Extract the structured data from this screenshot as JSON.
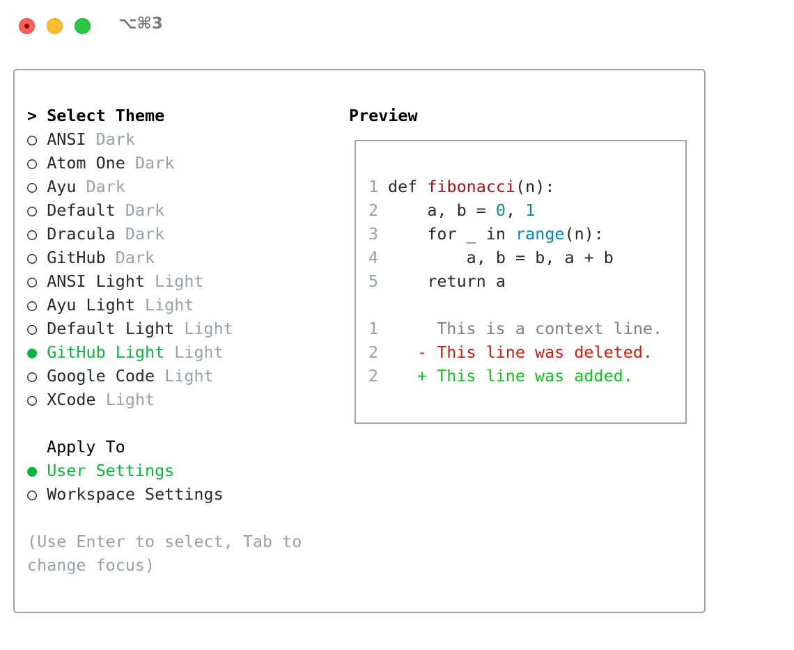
{
  "window": {
    "title": "⌥⌘3",
    "controls": {
      "close_color": "#ff5f57",
      "minimize_color": "#febc2e",
      "maximize_color": "#28c840"
    }
  },
  "theme_list": {
    "heading": "Select Theme",
    "cursor": ">",
    "items": [
      {
        "name": "ANSI",
        "type": "Dark",
        "selected": false
      },
      {
        "name": "Atom One",
        "type": "Dark",
        "selected": false
      },
      {
        "name": "Ayu",
        "type": "Dark",
        "selected": false
      },
      {
        "name": "Default",
        "type": "Dark",
        "selected": false
      },
      {
        "name": "Dracula",
        "type": "Dark",
        "selected": false
      },
      {
        "name": "GitHub",
        "type": "Dark",
        "selected": false
      },
      {
        "name": "ANSI Light",
        "type": "Light",
        "selected": false
      },
      {
        "name": "Ayu Light",
        "type": "Light",
        "selected": false
      },
      {
        "name": "Default Light",
        "type": "Light",
        "selected": false
      },
      {
        "name": "GitHub Light",
        "type": "Light",
        "selected": true
      },
      {
        "name": "Google Code",
        "type": "Light",
        "selected": false
      },
      {
        "name": "XCode",
        "type": "Light",
        "selected": false
      }
    ]
  },
  "apply_to": {
    "heading": "Apply To",
    "items": [
      {
        "label": "User Settings",
        "selected": true
      },
      {
        "label": "Workspace Settings",
        "selected": false
      }
    ]
  },
  "help": {
    "line1": "(Use Enter to select, Tab to",
    "line2": "change focus)"
  },
  "preview": {
    "heading": "Preview",
    "code": [
      {
        "num": "1",
        "parts": [
          {
            "t": "def ",
            "c": ""
          },
          {
            "t": "fibonacci",
            "c": "fn"
          },
          {
            "t": "(n):",
            "c": ""
          }
        ]
      },
      {
        "num": "2",
        "parts": [
          {
            "t": "    a, b = ",
            "c": ""
          },
          {
            "t": "0",
            "c": "lit"
          },
          {
            "t": ", ",
            "c": ""
          },
          {
            "t": "1",
            "c": "lit"
          }
        ]
      },
      {
        "num": "3",
        "parts": [
          {
            "t": "    for _ in ",
            "c": ""
          },
          {
            "t": "range",
            "c": "bi"
          },
          {
            "t": "(n):",
            "c": ""
          }
        ]
      },
      {
        "num": "4",
        "parts": [
          {
            "t": "        a, b = b, a + b",
            "c": ""
          }
        ]
      },
      {
        "num": "5",
        "parts": [
          {
            "t": "    return a",
            "c": ""
          }
        ]
      }
    ],
    "diff": [
      {
        "num": "1",
        "marker": " ",
        "text": "This is a context line.",
        "kind": "ctx"
      },
      {
        "num": "2",
        "marker": "-",
        "text": "This line was deleted.",
        "kind": "del"
      },
      {
        "num": "2",
        "marker": "+",
        "text": "This line was added.",
        "kind": "add"
      }
    ]
  },
  "colors": {
    "selected": "#0bb43a",
    "dim": "#98a0ab",
    "border": "#9ba3ad"
  }
}
